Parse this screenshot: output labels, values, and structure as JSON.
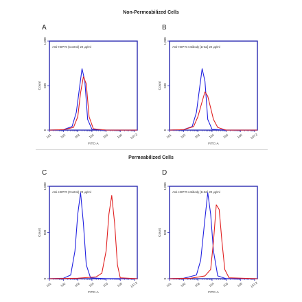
{
  "sections": {
    "top": "Non-Permeabilized Cells",
    "bottom": "Permeabilized Cells"
  },
  "colors": {
    "control": "#2020e0",
    "antibody": "#e02020",
    "frame": "#2a2ab0"
  },
  "chart_data": [
    {
      "type": "line",
      "panel": "A",
      "legend": "Anti-HSP70 (Control) 20 μg/ml",
      "xlabel": "FITC-A",
      "ylabel": "Count",
      "x_ticks": [
        "10^1",
        "10^2",
        "10^3",
        "10^4",
        "10^5",
        "10^6",
        "10^7.2"
      ],
      "y_ticks": [
        "0",
        "500",
        "1,000"
      ],
      "xlim": [
        1,
        7.2
      ],
      "ylim": [
        0,
        1000
      ],
      "x_scale": "log",
      "series": [
        {
          "color": "#2020e0",
          "x": [
            1.0,
            2.0,
            2.6,
            2.9,
            3.1,
            3.3,
            3.5,
            3.7,
            4.0,
            5.0,
            7.2
          ],
          "y": [
            0,
            5,
            40,
            200,
            450,
            690,
            550,
            120,
            10,
            0,
            0
          ]
        },
        {
          "color": "#e02020",
          "x": [
            1.0,
            2.0,
            2.7,
            3.0,
            3.2,
            3.4,
            3.6,
            3.8,
            4.1,
            5.0,
            7.2
          ],
          "y": [
            0,
            5,
            30,
            150,
            420,
            600,
            520,
            150,
            15,
            0,
            0
          ]
        }
      ]
    },
    {
      "type": "line",
      "panel": "B",
      "legend": "Anti-HSP70 Antibody [1H11] 20 μg/ml",
      "xlabel": "FITC-A",
      "ylabel": "Count",
      "x_ticks": [
        "10^1",
        "10^2",
        "10^3",
        "10^4",
        "10^5",
        "10^6",
        "10^7.2"
      ],
      "y_ticks": [
        "0",
        "500",
        "1,000"
      ],
      "xlim": [
        1,
        7.2
      ],
      "ylim": [
        0,
        1000
      ],
      "x_scale": "log",
      "series": [
        {
          "color": "#2020e0",
          "x": [
            1.0,
            2.0,
            2.6,
            2.9,
            3.1,
            3.3,
            3.5,
            3.7,
            4.0,
            5.0,
            7.2
          ],
          "y": [
            0,
            5,
            40,
            200,
            450,
            690,
            550,
            120,
            10,
            0,
            0
          ]
        },
        {
          "color": "#e02020",
          "x": [
            1.0,
            2.0,
            2.7,
            3.0,
            3.3,
            3.5,
            3.7,
            3.9,
            4.1,
            4.4,
            5.0,
            7.2
          ],
          "y": [
            0,
            5,
            40,
            150,
            320,
            430,
            380,
            250,
            120,
            30,
            0,
            0
          ]
        }
      ]
    },
    {
      "type": "line",
      "panel": "C",
      "legend": "Anti-HSP70 (Control) 20 μg/ml",
      "xlabel": "FITC-A",
      "ylabel": "Count",
      "x_ticks": [
        "10^1",
        "10^2",
        "10^3",
        "10^4",
        "10^5",
        "10^6",
        "10^7.2"
      ],
      "y_ticks": [
        "0",
        "500",
        "1,000"
      ],
      "xlim": [
        1,
        7.2
      ],
      "ylim": [
        0,
        1000
      ],
      "x_scale": "log",
      "series": [
        {
          "color": "#2020e0",
          "x": [
            1.0,
            2.0,
            2.5,
            2.8,
            3.0,
            3.2,
            3.4,
            3.6,
            3.9,
            5.0,
            7.2
          ],
          "y": [
            0,
            5,
            40,
            300,
            700,
            930,
            600,
            150,
            10,
            0,
            0
          ]
        },
        {
          "color": "#e02020",
          "x": [
            1.0,
            3.0,
            4.3,
            4.7,
            5.0,
            5.2,
            5.4,
            5.6,
            5.8,
            6.0,
            7.2
          ],
          "y": [
            0,
            5,
            20,
            60,
            300,
            700,
            900,
            600,
            150,
            10,
            0
          ]
        }
      ]
    },
    {
      "type": "line",
      "panel": "D",
      "legend": "Anti-HSP70 Antibody [1H11] 20 μg/ml",
      "xlabel": "FITC-A",
      "ylabel": "Count",
      "x_ticks": [
        "10^1",
        "10^2",
        "10^3",
        "10^4",
        "10^5",
        "10^6",
        "10^7.2"
      ],
      "y_ticks": [
        "0",
        "500",
        "1,000"
      ],
      "xlim": [
        1,
        7.2
      ],
      "ylim": [
        0,
        1000
      ],
      "x_scale": "log",
      "series": [
        {
          "color": "#2020e0",
          "x": [
            1.0,
            2.0,
            2.9,
            3.2,
            3.5,
            3.7,
            3.9,
            4.1,
            4.4,
            5.0,
            7.2
          ],
          "y": [
            0,
            5,
            40,
            200,
            650,
            930,
            700,
            300,
            30,
            0,
            0
          ]
        },
        {
          "color": "#e02020",
          "x": [
            1.0,
            2.5,
            3.5,
            3.9,
            4.1,
            4.3,
            4.5,
            4.7,
            4.9,
            5.2,
            7.2
          ],
          "y": [
            0,
            5,
            30,
            100,
            400,
            800,
            750,
            400,
            100,
            10,
            0
          ]
        }
      ]
    }
  ]
}
